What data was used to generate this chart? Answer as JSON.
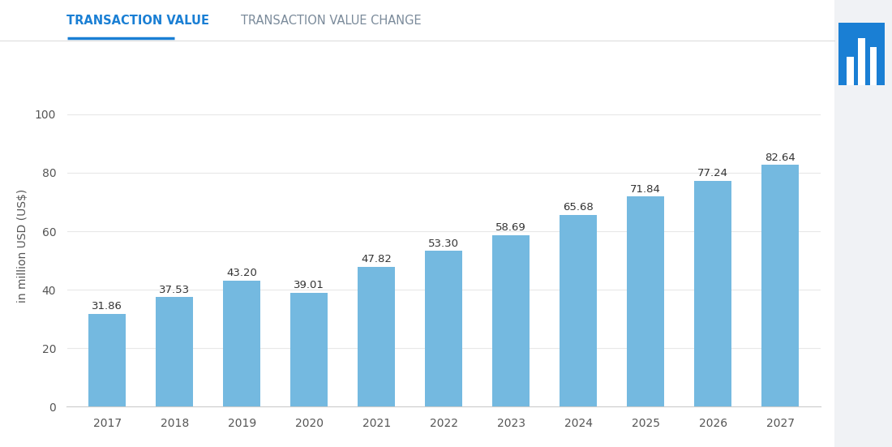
{
  "years": [
    "2017",
    "2018",
    "2019",
    "2020",
    "2021",
    "2022",
    "2023",
    "2024",
    "2025",
    "2026",
    "2027"
  ],
  "values": [
    31.86,
    37.53,
    43.2,
    39.01,
    47.82,
    53.3,
    58.69,
    65.68,
    71.84,
    77.24,
    82.64
  ],
  "bar_color": "#74b9e0",
  "background_color": "#ffffff",
  "right_panel_color": "#f0f2f5",
  "ylabel": "in million USD (US$)",
  "ylim": [
    0,
    110
  ],
  "yticks": [
    0,
    20,
    40,
    60,
    80,
    100
  ],
  "grid_color": "#e8e8e8",
  "tab1_label": "TRANSACTION VALUE",
  "tab2_label": "TRANSACTION VALUE CHANGE",
  "tab1_color": "#1a7fd4",
  "tab2_color": "#7a8a9a",
  "tab_underline_color": "#1a7fd4",
  "value_label_fontsize": 9.5,
  "axis_label_fontsize": 10,
  "tick_label_fontsize": 10,
  "active_icon_color": "#1a7fd4"
}
